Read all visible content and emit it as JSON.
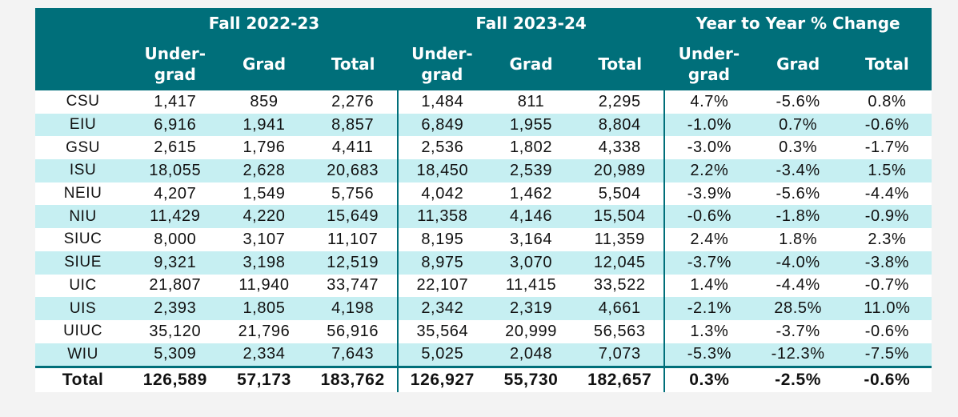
{
  "groups": {
    "fall_2022_23": "Fall 2022-23",
    "fall_2023_24": "Fall 2023-24",
    "change": "Year to Year % Change"
  },
  "columns": {
    "undergrad_line1": "Under-",
    "undergrad_line2": "grad",
    "grad": "Grad",
    "total": "Total"
  },
  "rows": [
    {
      "inst": "CSU",
      "ug22": "1,417",
      "gr22": "859",
      "tot22": "2,276",
      "ug23": "1,484",
      "gr23": "811",
      "tot23": "2,295",
      "ugc": "4.7%",
      "grc": "-5.6%",
      "totc": "0.8%"
    },
    {
      "inst": "EIU",
      "ug22": "6,916",
      "gr22": "1,941",
      "tot22": "8,857",
      "ug23": "6,849",
      "gr23": "1,955",
      "tot23": "8,804",
      "ugc": "-1.0%",
      "grc": "0.7%",
      "totc": "-0.6%"
    },
    {
      "inst": "GSU",
      "ug22": "2,615",
      "gr22": "1,796",
      "tot22": "4,411",
      "ug23": "2,536",
      "gr23": "1,802",
      "tot23": "4,338",
      "ugc": "-3.0%",
      "grc": "0.3%",
      "totc": "-1.7%"
    },
    {
      "inst": "ISU",
      "ug22": "18,055",
      "gr22": "2,628",
      "tot22": "20,683",
      "ug23": "18,450",
      "gr23": "2,539",
      "tot23": "20,989",
      "ugc": "2.2%",
      "grc": "-3.4%",
      "totc": "1.5%"
    },
    {
      "inst": "NEIU",
      "ug22": "4,207",
      "gr22": "1,549",
      "tot22": "5,756",
      "ug23": "4,042",
      "gr23": "1,462",
      "tot23": "5,504",
      "ugc": "-3.9%",
      "grc": "-5.6%",
      "totc": "-4.4%"
    },
    {
      "inst": "NIU",
      "ug22": "11,429",
      "gr22": "4,220",
      "tot22": "15,649",
      "ug23": "11,358",
      "gr23": "4,146",
      "tot23": "15,504",
      "ugc": "-0.6%",
      "grc": "-1.8%",
      "totc": "-0.9%"
    },
    {
      "inst": "SIUC",
      "ug22": "8,000",
      "gr22": "3,107",
      "tot22": "11,107",
      "ug23": "8,195",
      "gr23": "3,164",
      "tot23": "11,359",
      "ugc": "2.4%",
      "grc": "1.8%",
      "totc": "2.3%"
    },
    {
      "inst": "SIUE",
      "ug22": "9,321",
      "gr22": "3,198",
      "tot22": "12,519",
      "ug23": "8,975",
      "gr23": "3,070",
      "tot23": "12,045",
      "ugc": "-3.7%",
      "grc": "-4.0%",
      "totc": "-3.8%"
    },
    {
      "inst": "UIC",
      "ug22": "21,807",
      "gr22": "11,940",
      "tot22": "33,747",
      "ug23": "22,107",
      "gr23": "11,415",
      "tot23": "33,522",
      "ugc": "1.4%",
      "grc": "-4.4%",
      "totc": "-0.7%"
    },
    {
      "inst": "UIS",
      "ug22": "2,393",
      "gr22": "1,805",
      "tot22": "4,198",
      "ug23": "2,342",
      "gr23": "2,319",
      "tot23": "4,661",
      "ugc": "-2.1%",
      "grc": "28.5%",
      "totc": "11.0%"
    },
    {
      "inst": "UIUC",
      "ug22": "35,120",
      "gr22": "21,796",
      "tot22": "56,916",
      "ug23": "35,564",
      "gr23": "20,999",
      "tot23": "56,563",
      "ugc": "1.3%",
      "grc": "-3.7%",
      "totc": "-0.6%"
    },
    {
      "inst": "WIU",
      "ug22": "5,309",
      "gr22": "2,334",
      "tot22": "7,643",
      "ug23": "5,025",
      "gr23": "2,048",
      "tot23": "7,073",
      "ugc": "-5.3%",
      "grc": "-12.3%",
      "totc": "-7.5%"
    }
  ],
  "total": {
    "inst": "Total",
    "ug22": "126,589",
    "gr22": "57,173",
    "tot22": "183,762",
    "ug23": "126,927",
    "gr23": "55,730",
    "tot23": "182,657",
    "ugc": "0.3%",
    "grc": "-2.5%",
    "totc": "-0.6%"
  },
  "colors": {
    "header_bg": "#006f7a",
    "stripe": "#c6eff2"
  }
}
